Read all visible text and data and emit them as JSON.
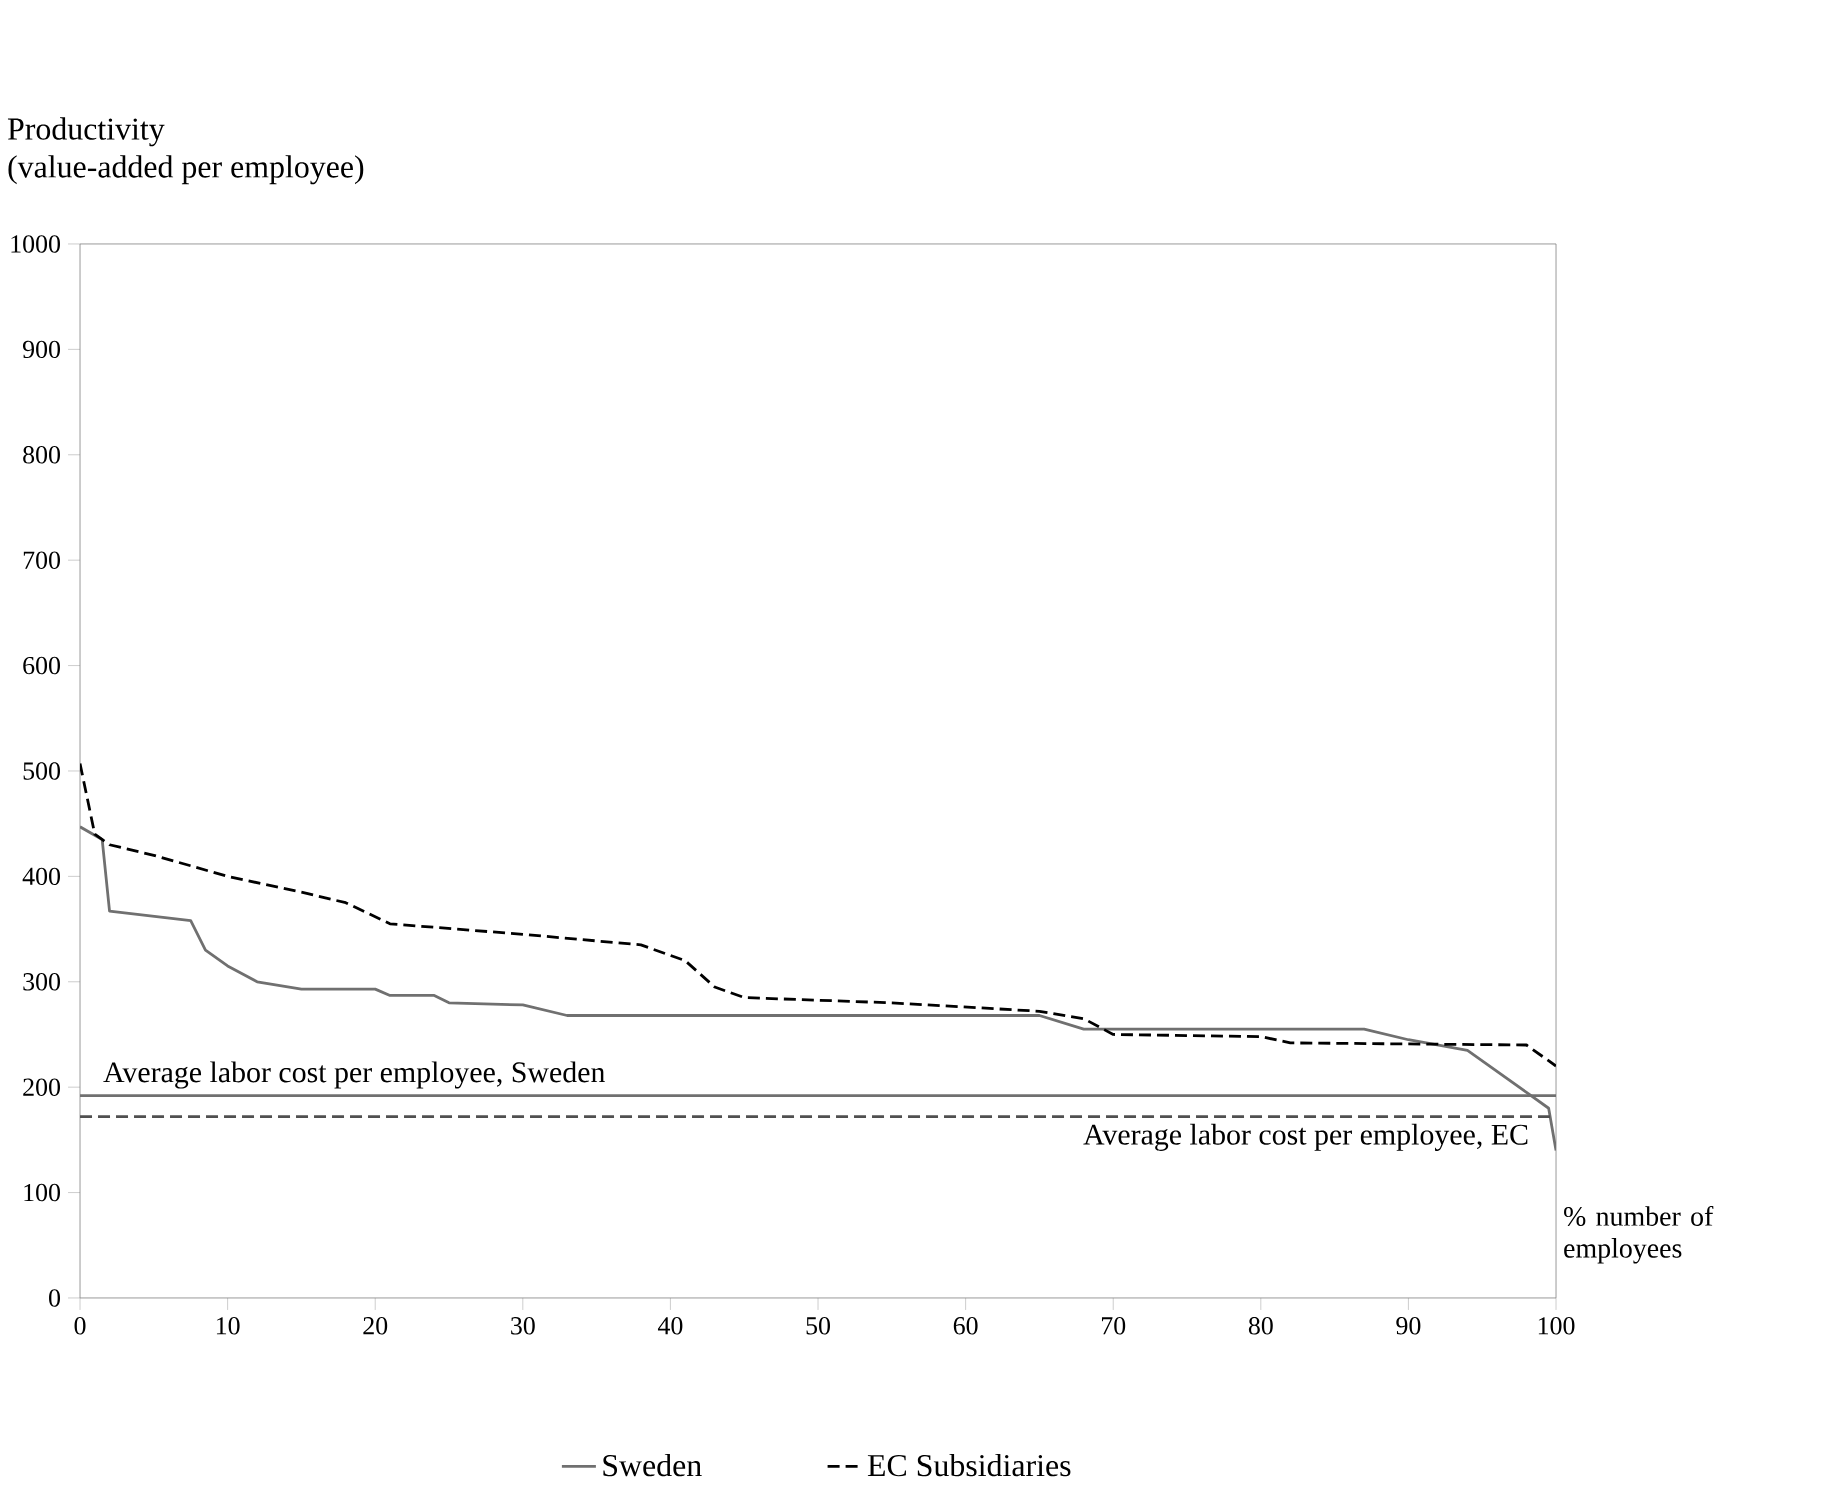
{
  "chart_data": {
    "type": "line",
    "ylabel": "Productivity\n(value-added per employee)",
    "xlabel": "% number of employees",
    "xlim": [
      0,
      100
    ],
    "ylim": [
      0,
      1000
    ],
    "xticks": [
      0,
      10,
      20,
      30,
      40,
      50,
      60,
      70,
      80,
      90,
      100
    ],
    "yticks": [
      0,
      100,
      200,
      300,
      400,
      500,
      600,
      700,
      800,
      900,
      1000
    ],
    "legend": "bottom",
    "grid": false,
    "series": [
      {
        "name": "Sweden",
        "color": "#707070",
        "line_style": "solid",
        "x": [
          0,
          1.5,
          2,
          7.5,
          8.5,
          10,
          12,
          15,
          20,
          21,
          24,
          25,
          30,
          33,
          45,
          65,
          68,
          72,
          87,
          90,
          94,
          96,
          98,
          99.5,
          100
        ],
        "values": [
          447,
          435,
          367,
          358,
          330,
          315,
          300,
          293,
          293,
          287,
          287,
          280,
          278,
          268,
          268,
          268,
          255,
          255,
          255,
          245,
          235,
          215,
          195,
          180,
          140
        ]
      },
      {
        "name": "EC Subsidiaries",
        "color": "#000000",
        "line_style": "dashed",
        "x": [
          0,
          1,
          2,
          5,
          10,
          15,
          18,
          21,
          30,
          38,
          41,
          43,
          45,
          55,
          65,
          68,
          70,
          80,
          82,
          98,
          100
        ],
        "values": [
          507,
          440,
          430,
          420,
          400,
          385,
          375,
          355,
          345,
          335,
          320,
          295,
          285,
          280,
          272,
          265,
          250,
          248,
          242,
          240,
          220
        ]
      }
    ],
    "ref_lines": [
      {
        "axis": "y",
        "value": 192,
        "label": "Average labor cost per employee, Sweden",
        "color": "#707070",
        "line_style": "solid"
      },
      {
        "axis": "y",
        "value": 172,
        "label": "Average labor cost per employee, EC",
        "color": "#505050",
        "line_style": "dashed"
      }
    ]
  }
}
